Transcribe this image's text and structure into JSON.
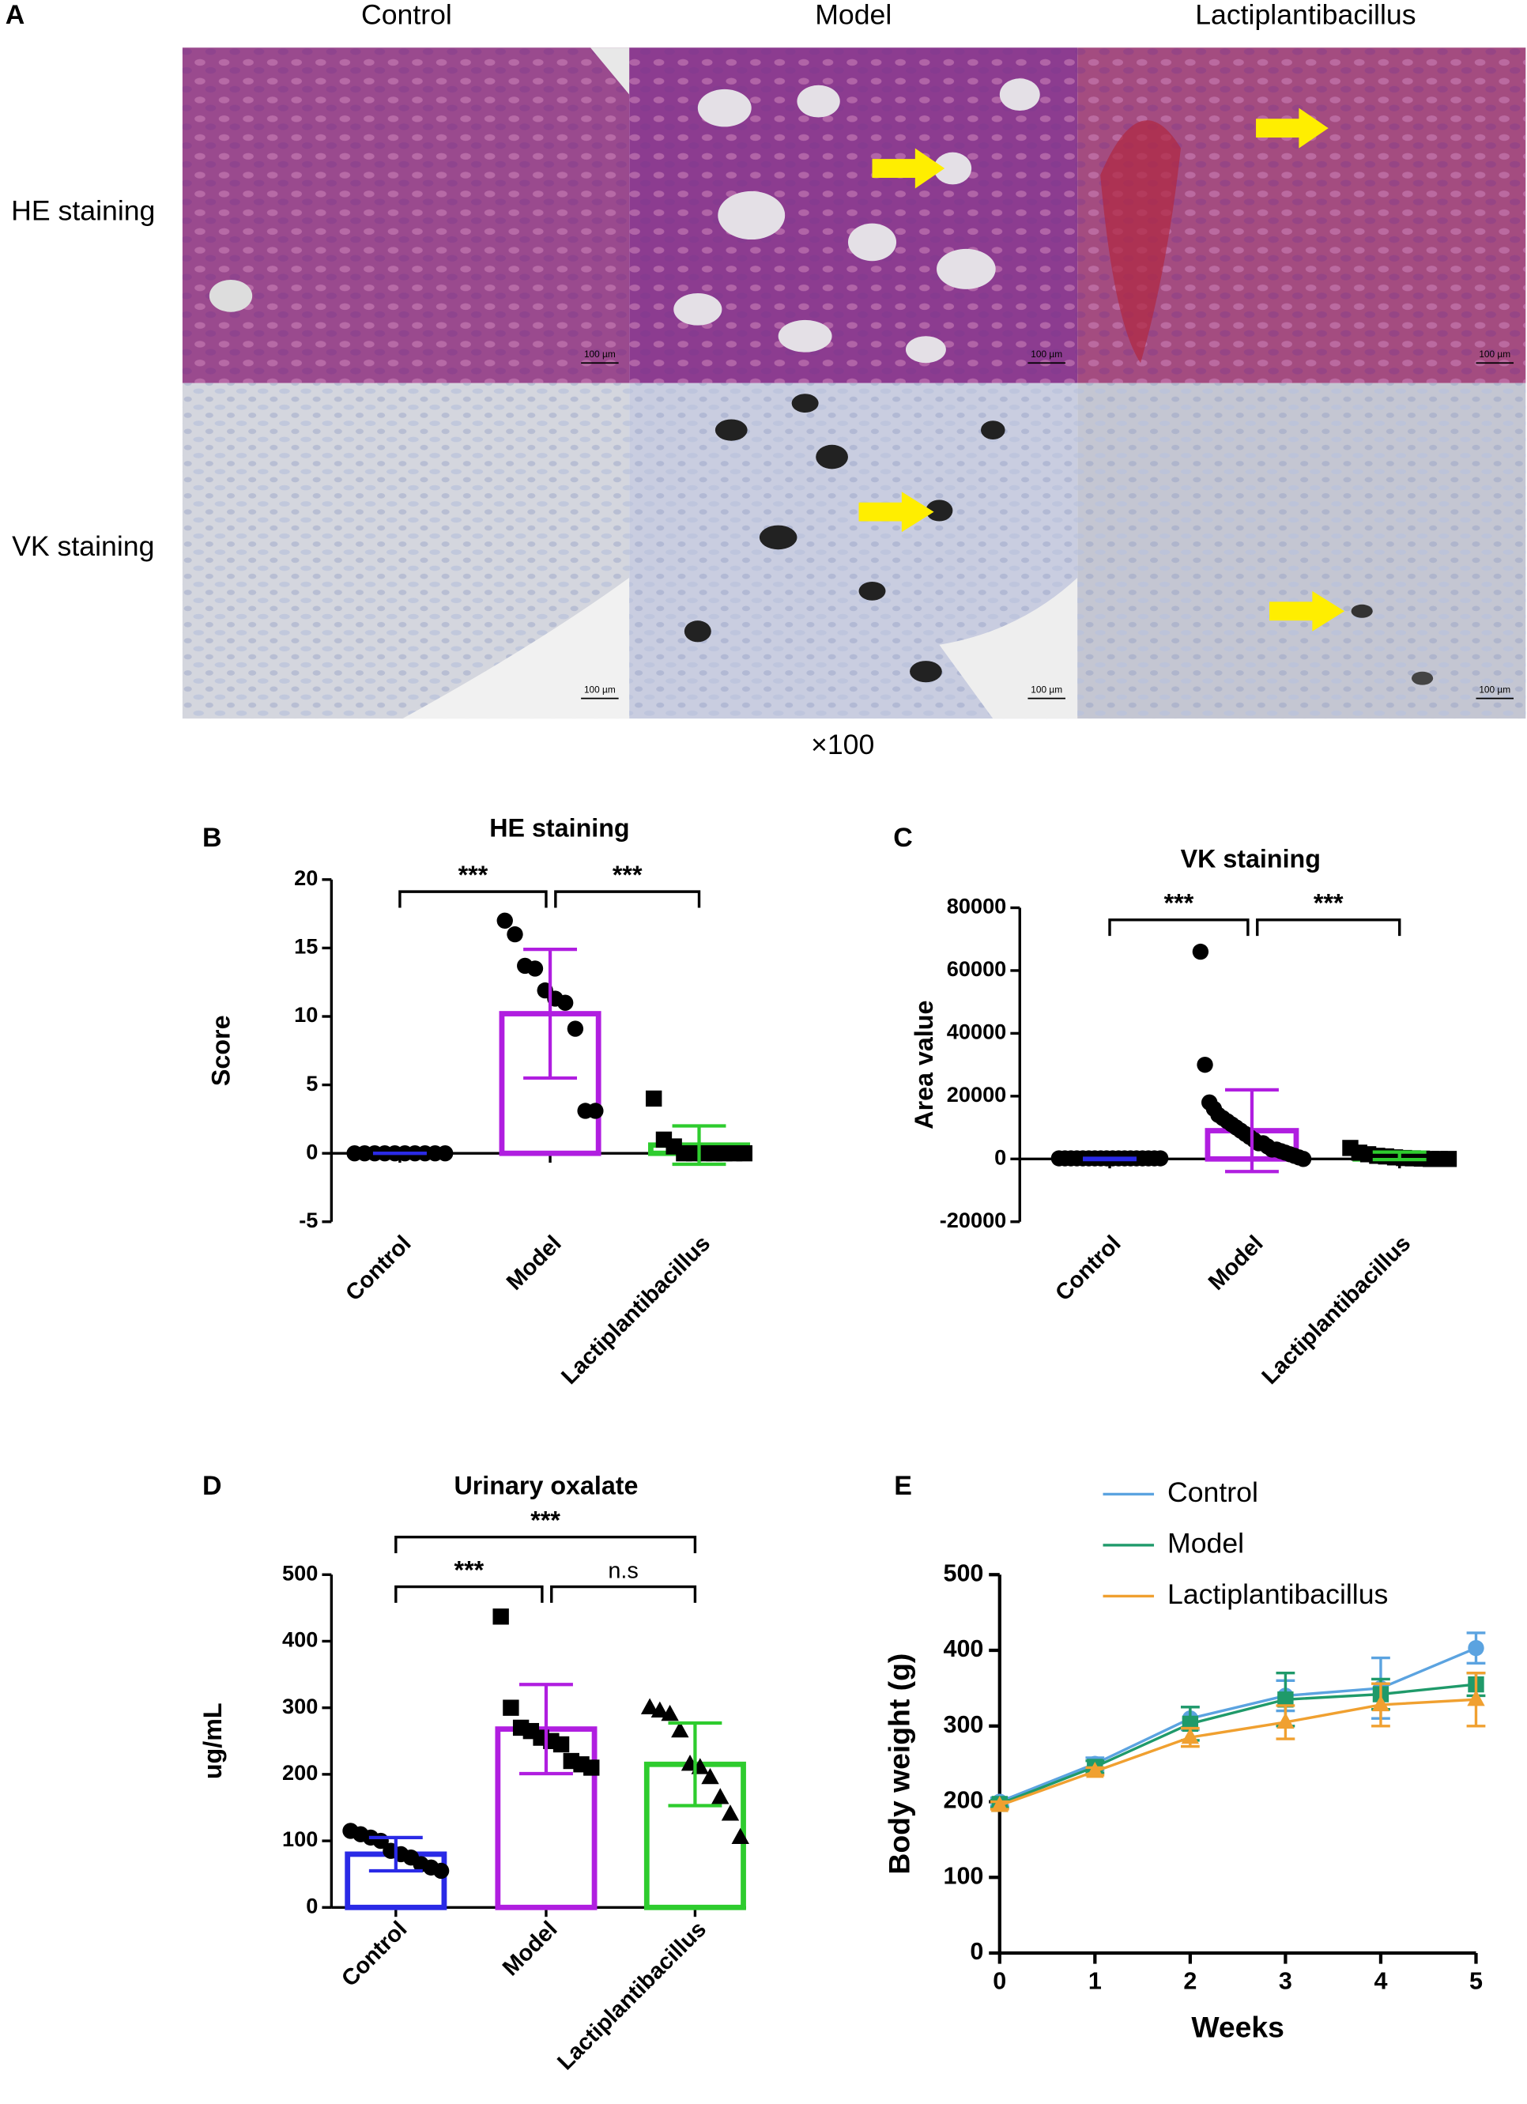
{
  "panel_a": {
    "label": "A",
    "columns": [
      "Control",
      "Model",
      "Lactiplantibacillus"
    ],
    "rows": [
      "HE staining",
      "VK staining"
    ],
    "scale_bar": "100 µm",
    "magnification": "×100"
  },
  "chart_data": [
    {
      "panel": "B",
      "type": "bar",
      "title": "HE staining",
      "ylabel": "Score",
      "categories": [
        "Control",
        "Model",
        "Lactiplantibacillus"
      ],
      "values": [
        0,
        10.2,
        0.6
      ],
      "errors": [
        0,
        4.7,
        1.4
      ],
      "colors": [
        "#2a2ae6",
        "#b01ee0",
        "#2ecc2e"
      ],
      "markers": [
        "circle",
        "circle",
        "square"
      ],
      "points": [
        [
          0,
          0,
          0,
          0,
          0,
          0,
          0,
          0,
          0,
          0
        ],
        [
          17,
          16,
          13.7,
          13.5,
          11.9,
          11.3,
          11,
          9.1,
          3.1,
          3.1
        ],
        [
          4,
          1,
          0.5,
          0,
          0,
          0,
          0,
          0,
          0,
          0
        ]
      ],
      "ylim": [
        -5,
        20
      ],
      "yticks": [
        -5,
        0,
        5,
        10,
        15,
        20
      ],
      "significance": [
        {
          "groups": [
            "Control",
            "Model"
          ],
          "label": "***"
        },
        {
          "groups": [
            "Model",
            "Lactiplantibacillus"
          ],
          "label": "***"
        }
      ]
    },
    {
      "panel": "C",
      "type": "bar",
      "title": "VK staining",
      "ylabel": "Area value",
      "categories": [
        "Control",
        "Model",
        "Lactiplantibacillus"
      ],
      "values": [
        0,
        9000,
        1000
      ],
      "errors": [
        200,
        13000,
        1200
      ],
      "colors": [
        "#2a2ae6",
        "#b01ee0",
        "#2ecc2e"
      ],
      "markers": [
        "circle",
        "circle",
        "square"
      ],
      "points": [
        [
          200,
          200,
          200,
          200,
          200,
          200,
          200,
          200,
          200,
          200,
          200,
          200,
          200,
          200,
          200,
          200,
          200,
          200
        ],
        [
          66000,
          30000,
          18000,
          16000,
          14000,
          13000,
          12000,
          11000,
          10000,
          9000,
          8000,
          7000,
          6000,
          5000,
          5000,
          4000,
          3000,
          3000,
          2500,
          2000,
          1500,
          1000,
          500,
          0
        ],
        [
          3500,
          2000,
          1500,
          1000,
          800,
          500,
          300,
          200,
          100,
          0,
          0,
          0
        ]
      ],
      "ylim": [
        -20000,
        80000
      ],
      "yticks": [
        -20000,
        0,
        20000,
        40000,
        60000,
        80000
      ],
      "significance": [
        {
          "groups": [
            "Control",
            "Model"
          ],
          "label": "***"
        },
        {
          "groups": [
            "Model",
            "Lactiplantibacillus"
          ],
          "label": "***"
        }
      ]
    },
    {
      "panel": "D",
      "type": "bar",
      "title": "Urinary oxalate",
      "ylabel": "ug/mL",
      "categories": [
        "Control",
        "Model",
        "Lactiplantibacillus"
      ],
      "values": [
        80,
        268,
        215
      ],
      "errors": [
        25,
        67,
        62
      ],
      "colors": [
        "#2a2ae6",
        "#b01ee0",
        "#2ecc2e"
      ],
      "markers": [
        "circle",
        "square",
        "triangle"
      ],
      "points": [
        [
          115,
          110,
          105,
          100,
          85,
          80,
          75,
          65,
          60,
          55
        ],
        [
          437,
          300,
          270,
          265,
          255,
          250,
          245,
          220,
          215,
          210
        ],
        [
          300,
          295,
          290,
          265,
          215,
          210,
          195,
          165,
          140,
          105
        ]
      ],
      "ylim": [
        0,
        500
      ],
      "yticks": [
        0,
        100,
        200,
        300,
        400,
        500
      ],
      "significance": [
        {
          "groups": [
            "Control",
            "Model"
          ],
          "label": "***"
        },
        {
          "groups": [
            "Model",
            "Lactiplantibacillus"
          ],
          "label": "n.s"
        },
        {
          "groups": [
            "Control",
            "Lactiplantibacillus"
          ],
          "label": "***"
        }
      ]
    },
    {
      "panel": "E",
      "type": "line",
      "xlabel": "Weeks",
      "ylabel": "Body weight (g)",
      "x": [
        0,
        1,
        2,
        3,
        4,
        5
      ],
      "xlim": [
        0,
        5
      ],
      "xticks": [
        0,
        1,
        2,
        3,
        4,
        5
      ],
      "ylim": [
        0,
        500
      ],
      "yticks": [
        0,
        100,
        200,
        300,
        400,
        500
      ],
      "series": [
        {
          "name": "Control",
          "color": "#5ba3e0",
          "marker": "circle",
          "values": [
            200,
            250,
            310,
            340,
            350,
            403
          ],
          "errors": [
            5,
            8,
            15,
            20,
            40,
            20
          ]
        },
        {
          "name": "Model",
          "color": "#1f9a6a",
          "marker": "square",
          "values": [
            197,
            246,
            303,
            335,
            342,
            355
          ],
          "errors": [
            5,
            8,
            22,
            35,
            20,
            15
          ]
        },
        {
          "name": "Lactiplantibacillus",
          "color": "#f0a030",
          "marker": "triangle",
          "values": [
            195,
            240,
            285,
            305,
            328,
            335
          ],
          "errors": [
            5,
            5,
            12,
            22,
            28,
            35
          ]
        }
      ]
    }
  ]
}
